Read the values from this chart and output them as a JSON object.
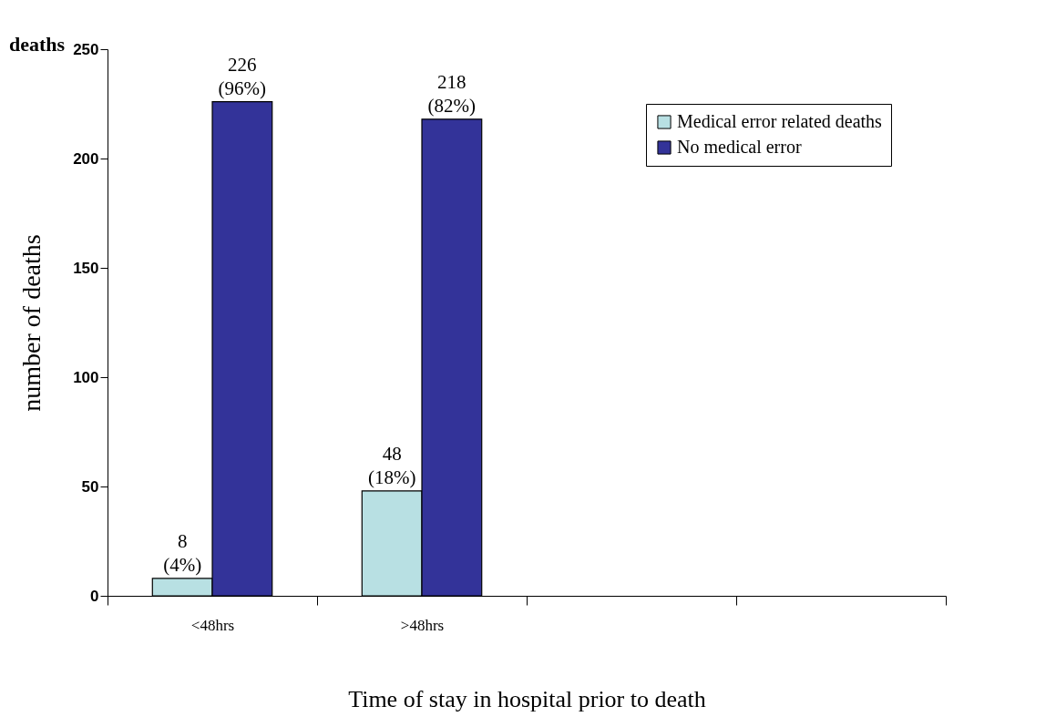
{
  "chart_data": {
    "type": "bar",
    "title": "deaths",
    "xlabel": "Time of stay in hospital prior to death",
    "ylabel": "number of deaths",
    "categories": [
      "<48hrs",
      ">48hrs",
      null,
      null
    ],
    "series": [
      {
        "name": "Medical error related deaths",
        "color": "#b8e0e3",
        "values": [
          8,
          48,
          null,
          null
        ],
        "value_labels": [
          "8\n(4%)",
          "48\n(18%)",
          null,
          null
        ]
      },
      {
        "name": "No medical error",
        "color": "#333399",
        "values": [
          226,
          218,
          null,
          null
        ],
        "value_labels": [
          "226\n(96%)",
          "218\n(82%)",
          null,
          null
        ]
      }
    ],
    "ylim": [
      0,
      250
    ],
    "yticks": [
      0,
      50,
      100,
      150,
      200,
      250
    ],
    "grid": false,
    "legend": "top right"
  }
}
